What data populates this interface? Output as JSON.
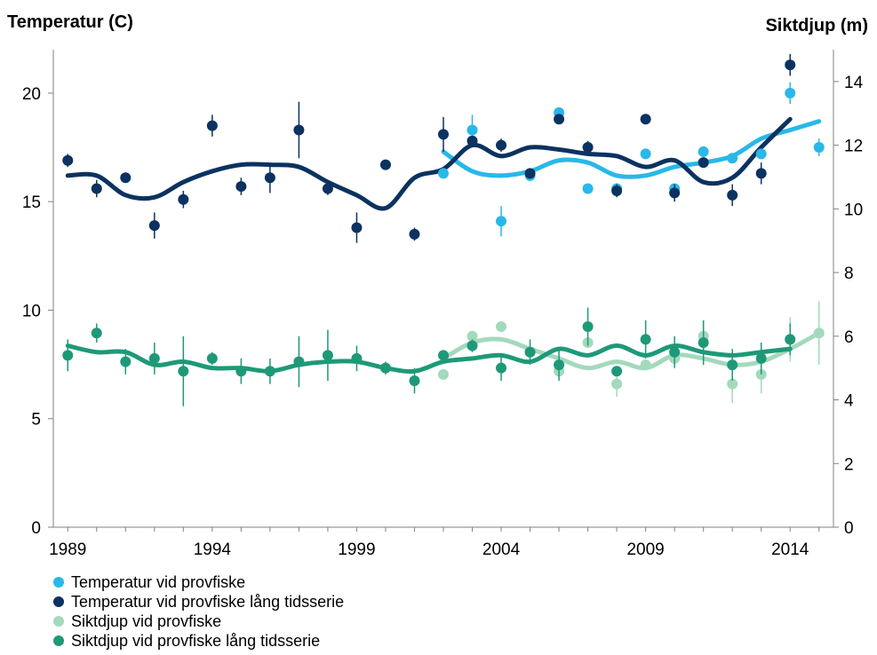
{
  "chart_data": {
    "type": "scatter",
    "y_left_label": "Temperatur (C)",
    "y_right_label": "Siktdjup (m)",
    "xlim": [
      1988.5,
      2015.5
    ],
    "y_left_lim": [
      0,
      22
    ],
    "y_right_lim": [
      0,
      15
    ],
    "x_ticks": [
      1989,
      1994,
      1999,
      2004,
      2009,
      2014
    ],
    "y_left_ticks": [
      0,
      5,
      10,
      15,
      20
    ],
    "y_right_ticks": [
      0,
      2,
      4,
      6,
      8,
      10,
      12,
      14
    ],
    "series": [
      {
        "name": "Temperatur vid provfiske",
        "axis": "left",
        "color": "#29b8e8",
        "points": [
          {
            "x": 2002,
            "y": 16.3
          },
          {
            "x": 2003,
            "y": 18.3,
            "err": 0.7
          },
          {
            "x": 2004,
            "y": 14.1,
            "err": 0.7
          },
          {
            "x": 2005,
            "y": 16.2
          },
          {
            "x": 2006,
            "y": 19.1
          },
          {
            "x": 2007,
            "y": 15.6
          },
          {
            "x": 2008,
            "y": 15.6
          },
          {
            "x": 2009,
            "y": 17.2
          },
          {
            "x": 2010,
            "y": 15.6
          },
          {
            "x": 2011,
            "y": 17.3
          },
          {
            "x": 2012,
            "y": 17.0
          },
          {
            "x": 2013,
            "y": 17.2
          },
          {
            "x": 2014,
            "y": 20.0,
            "err": 0.5
          },
          {
            "x": 2015,
            "y": 17.5,
            "err": 0.4
          }
        ],
        "trend": [
          [
            2002,
            17.3
          ],
          [
            2003,
            16.4
          ],
          [
            2004,
            16.2
          ],
          [
            2005,
            16.4
          ],
          [
            2006,
            16.9
          ],
          [
            2007,
            16.8
          ],
          [
            2008,
            16.2
          ],
          [
            2009,
            16.2
          ],
          [
            2010,
            16.6
          ],
          [
            2011,
            16.8
          ],
          [
            2012,
            17.1
          ],
          [
            2013,
            17.9
          ],
          [
            2014,
            18.3
          ],
          [
            2015,
            18.7
          ]
        ]
      },
      {
        "name": "Temperatur vid provfiske lång tidsserie",
        "axis": "left",
        "color": "#0b3260",
        "points": [
          {
            "x": 1989,
            "y": 16.9,
            "err": 0.3
          },
          {
            "x": 1990,
            "y": 15.6,
            "err": 0.4
          },
          {
            "x": 1991,
            "y": 16.1
          },
          {
            "x": 1992,
            "y": 13.9,
            "err": 0.6
          },
          {
            "x": 1993,
            "y": 15.1,
            "err": 0.4
          },
          {
            "x": 1994,
            "y": 18.5,
            "err": 0.5
          },
          {
            "x": 1995,
            "y": 15.7,
            "err": 0.4
          },
          {
            "x": 1996,
            "y": 16.1,
            "err": 0.7
          },
          {
            "x": 1997,
            "y": 18.3,
            "err": 1.3
          },
          {
            "x": 1998,
            "y": 15.6,
            "err": 0.3
          },
          {
            "x": 1999,
            "y": 13.8,
            "err": 0.7
          },
          {
            "x": 2000,
            "y": 16.7
          },
          {
            "x": 2001,
            "y": 13.5,
            "err": 0.3
          },
          {
            "x": 2002,
            "y": 18.1,
            "err": 0.8
          },
          {
            "x": 2003,
            "y": 17.8
          },
          {
            "x": 2004,
            "y": 17.6,
            "err": 0.3
          },
          {
            "x": 2005,
            "y": 16.3
          },
          {
            "x": 2006,
            "y": 18.8
          },
          {
            "x": 2007,
            "y": 17.5,
            "err": 0.3
          },
          {
            "x": 2008,
            "y": 15.5,
            "err": 0.3
          },
          {
            "x": 2009,
            "y": 18.8
          },
          {
            "x": 2010,
            "y": 15.4,
            "err": 0.4
          },
          {
            "x": 2011,
            "y": 16.8
          },
          {
            "x": 2012,
            "y": 15.3,
            "err": 0.5
          },
          {
            "x": 2013,
            "y": 16.3,
            "err": 0.5
          },
          {
            "x": 2014,
            "y": 21.3,
            "err": 0.5
          }
        ],
        "trend": [
          [
            1989,
            16.2
          ],
          [
            1990,
            16.2
          ],
          [
            1991,
            15.3
          ],
          [
            1992,
            15.2
          ],
          [
            1993,
            15.9
          ],
          [
            1994,
            16.4
          ],
          [
            1995,
            16.7
          ],
          [
            1996,
            16.7
          ],
          [
            1997,
            16.6
          ],
          [
            1998,
            15.9
          ],
          [
            1999,
            15.3
          ],
          [
            2000,
            14.7
          ],
          [
            2001,
            16.1
          ],
          [
            2002,
            16.5
          ],
          [
            2003,
            17.6
          ],
          [
            2004,
            17.1
          ],
          [
            2005,
            17.5
          ],
          [
            2006,
            17.4
          ],
          [
            2007,
            17.2
          ],
          [
            2008,
            17.1
          ],
          [
            2009,
            16.6
          ],
          [
            2010,
            16.9
          ],
          [
            2011,
            15.9
          ],
          [
            2012,
            16.1
          ],
          [
            2013,
            17.5
          ],
          [
            2014,
            18.8
          ]
        ]
      },
      {
        "name": "Siktdjup vid provfiske",
        "axis": "right",
        "color": "#a3d9bc",
        "points": [
          {
            "x": 2002,
            "y": 4.8
          },
          {
            "x": 2003,
            "y": 6.0
          },
          {
            "x": 2004,
            "y": 6.3
          },
          {
            "x": 2005,
            "y": 5.5
          },
          {
            "x": 2006,
            "y": 4.9
          },
          {
            "x": 2007,
            "y": 5.8
          },
          {
            "x": 2008,
            "y": 4.5,
            "err": 0.4
          },
          {
            "x": 2009,
            "y": 5.1
          },
          {
            "x": 2010,
            "y": 5.3
          },
          {
            "x": 2011,
            "y": 6.0,
            "err": 0.5
          },
          {
            "x": 2012,
            "y": 4.5,
            "err": 0.6
          },
          {
            "x": 2013,
            "y": 4.8,
            "err": 0.6
          },
          {
            "x": 2014,
            "y": 5.9,
            "err": 0.7
          },
          {
            "x": 2015,
            "y": 6.1,
            "err": 1.0
          }
        ],
        "trend": [
          [
            2002,
            5.3
          ],
          [
            2003,
            5.8
          ],
          [
            2004,
            5.9
          ],
          [
            2005,
            5.6
          ],
          [
            2006,
            5.3
          ],
          [
            2007,
            5.0
          ],
          [
            2008,
            5.2
          ],
          [
            2009,
            5.0
          ],
          [
            2010,
            5.4
          ],
          [
            2011,
            5.3
          ],
          [
            2012,
            5.1
          ],
          [
            2013,
            5.2
          ],
          [
            2014,
            5.6
          ],
          [
            2015,
            6.1
          ]
        ]
      },
      {
        "name": "Siktdjup vid provfiske lång tidsserie",
        "axis": "right",
        "color": "#1e9978",
        "points": [
          {
            "x": 1989,
            "y": 5.4,
            "err": 0.5
          },
          {
            "x": 1990,
            "y": 6.1,
            "err": 0.3
          },
          {
            "x": 1991,
            "y": 5.2,
            "err": 0.4
          },
          {
            "x": 1992,
            "y": 5.3,
            "err": 0.5
          },
          {
            "x": 1993,
            "y": 4.9,
            "err": 1.1
          },
          {
            "x": 1994,
            "y": 5.3,
            "err": 0.2
          },
          {
            "x": 1995,
            "y": 4.9,
            "err": 0.4
          },
          {
            "x": 1996,
            "y": 4.9,
            "err": 0.4
          },
          {
            "x": 1997,
            "y": 5.2,
            "err": 0.8
          },
          {
            "x": 1998,
            "y": 5.4,
            "err": 0.8
          },
          {
            "x": 1999,
            "y": 5.3,
            "err": 0.4
          },
          {
            "x": 2000,
            "y": 5.0,
            "err": 0.2
          },
          {
            "x": 2001,
            "y": 4.6,
            "err": 0.4
          },
          {
            "x": 2002,
            "y": 5.4
          },
          {
            "x": 2003,
            "y": 5.7,
            "err": 0.2
          },
          {
            "x": 2004,
            "y": 5.0,
            "err": 0.4
          },
          {
            "x": 2005,
            "y": 5.5,
            "err": 0.4
          },
          {
            "x": 2006,
            "y": 5.1,
            "err": 0.5
          },
          {
            "x": 2007,
            "y": 6.3,
            "err": 0.6
          },
          {
            "x": 2008,
            "y": 4.9
          },
          {
            "x": 2009,
            "y": 5.9,
            "err": 0.6
          },
          {
            "x": 2010,
            "y": 5.5,
            "err": 0.5
          },
          {
            "x": 2011,
            "y": 5.8,
            "err": 0.7
          },
          {
            "x": 2012,
            "y": 5.1,
            "err": 0.5
          },
          {
            "x": 2013,
            "y": 5.3,
            "err": 0.5
          },
          {
            "x": 2014,
            "y": 5.9,
            "err": 0.5
          }
        ],
        "trend": [
          [
            1989,
            5.7
          ],
          [
            1990,
            5.5
          ],
          [
            1991,
            5.5
          ],
          [
            1992,
            5.1
          ],
          [
            1993,
            5.2
          ],
          [
            1994,
            5.0
          ],
          [
            1995,
            5.0
          ],
          [
            1996,
            4.9
          ],
          [
            1997,
            5.1
          ],
          [
            1998,
            5.2
          ],
          [
            1999,
            5.2
          ],
          [
            2000,
            5.0
          ],
          [
            2001,
            4.9
          ],
          [
            2002,
            5.2
          ],
          [
            2003,
            5.3
          ],
          [
            2004,
            5.4
          ],
          [
            2005,
            5.2
          ],
          [
            2006,
            5.6
          ],
          [
            2007,
            5.4
          ],
          [
            2008,
            5.7
          ],
          [
            2009,
            5.4
          ],
          [
            2010,
            5.7
          ],
          [
            2011,
            5.5
          ],
          [
            2012,
            5.4
          ],
          [
            2013,
            5.5
          ],
          [
            2014,
            5.6
          ]
        ]
      }
    ]
  }
}
